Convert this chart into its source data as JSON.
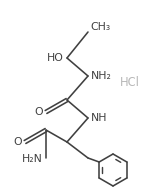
{
  "bg_color": "#ffffff",
  "line_color": "#404040",
  "text_color": "#404040",
  "hcl_color": "#b8b8b8",
  "figsize": [
    1.53,
    1.91
  ],
  "dpi": 100,
  "lw": 1.15,
  "fs": 7.8,
  "labels": {
    "CH3": "CH₃",
    "HO": "HO",
    "NH2": "NH₂",
    "O": "O",
    "NH": "NH",
    "H2N": "H₂N",
    "HCl": "HCl"
  }
}
